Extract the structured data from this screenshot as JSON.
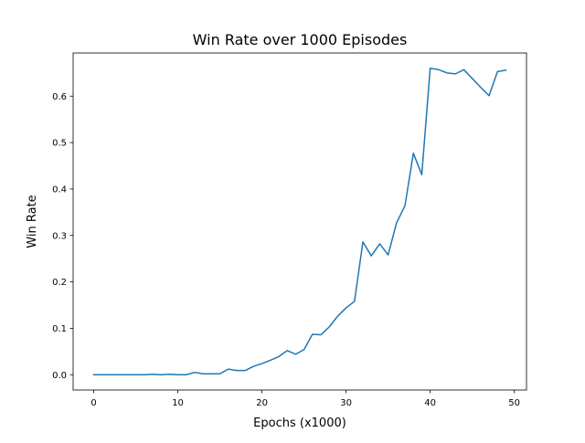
{
  "colors": {
    "line": "#1f77b4",
    "axes": "#000000",
    "background": "#ffffff"
  },
  "chart_data": {
    "type": "line",
    "title": "Win Rate over 1000 Episodes",
    "xlabel": "Epochs (x1000)",
    "ylabel": "Win Rate",
    "xlim": [
      -2.45,
      51.45
    ],
    "ylim": [
      -0.033,
      0.693
    ],
    "grid": false,
    "legend": "none",
    "xticks": [
      0,
      10,
      20,
      30,
      40,
      50
    ],
    "xtick_labels": [
      "0",
      "10",
      "20",
      "30",
      "40",
      "50"
    ],
    "yticks": [
      0.0,
      0.1,
      0.2,
      0.3,
      0.4,
      0.5,
      0.6
    ],
    "ytick_labels": [
      "0.0",
      "0.1",
      "0.2",
      "0.3",
      "0.4",
      "0.5",
      "0.6"
    ],
    "series": [
      {
        "x": [
          0,
          1,
          2,
          3,
          4,
          5,
          6,
          7,
          8,
          9,
          10,
          11,
          12,
          13,
          14,
          15,
          16,
          17,
          18,
          19,
          20,
          21,
          22,
          23,
          24,
          25,
          26,
          27,
          28,
          29,
          30,
          31,
          32,
          33,
          34,
          35,
          36,
          37,
          38,
          39,
          40,
          41,
          42,
          43,
          44,
          45,
          46,
          47,
          48,
          49
        ],
        "y": [
          0.0,
          0.0,
          0.0,
          0.0,
          0.0,
          0.0,
          0.0,
          0.001,
          0.0,
          0.001,
          0.0,
          0.0,
          0.005,
          0.002,
          0.002,
          0.002,
          0.012,
          0.009,
          0.009,
          0.018,
          0.024,
          0.031,
          0.039,
          0.052,
          0.044,
          0.054,
          0.087,
          0.086,
          0.103,
          0.126,
          0.144,
          0.158,
          0.286,
          0.256,
          0.282,
          0.258,
          0.327,
          0.364,
          0.477,
          0.431,
          0.66,
          0.657,
          0.65,
          0.648,
          0.657,
          0.638,
          0.619,
          0.601,
          0.653,
          0.656
        ]
      }
    ]
  }
}
